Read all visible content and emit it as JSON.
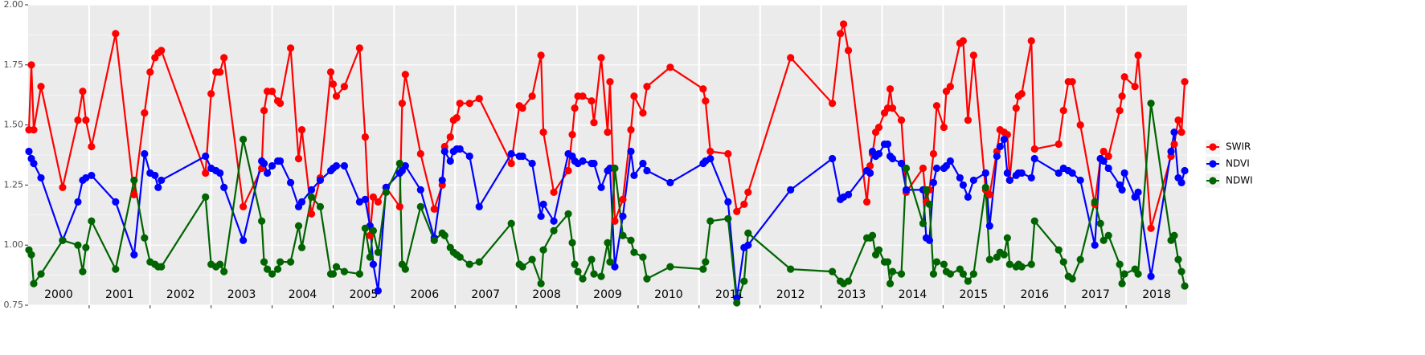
{
  "chart_data": {
    "type": "line",
    "x": [
      2000.013,
      2000.053,
      2000.092,
      2000.211,
      2000.566,
      2000.816,
      2000.895,
      2000.947,
      2001.039,
      2001.434,
      2001.737,
      2001.908,
      2002.0,
      2002.079,
      2002.132,
      2002.184,
      2002.908,
      2003.0,
      2003.079,
      2003.145,
      2003.211,
      2003.526,
      2003.829,
      2003.868,
      2003.921,
      2004.0,
      2004.092,
      2004.132,
      2004.303,
      2004.434,
      2004.487,
      2004.645,
      2004.789,
      2004.961,
      2005.0,
      2005.053,
      2005.184,
      2005.434,
      2005.526,
      2005.605,
      2005.658,
      2005.737,
      2005.868,
      2006.092,
      2006.132,
      2006.184,
      2006.434,
      2006.658,
      2006.789,
      2006.829,
      2006.921,
      2006.974,
      2007.026,
      2007.079,
      2007.237,
      2007.395,
      2007.921,
      2008.053,
      2008.105,
      2008.263,
      2008.408,
      2008.447,
      2008.618,
      2008.855,
      2008.921,
      2008.961,
      2009.013,
      2009.092,
      2009.237,
      2009.276,
      2009.395,
      2009.5,
      2009.539,
      2009.618,
      2009.75,
      2009.882,
      2009.934,
      2010.079,
      2010.145,
      2010.526,
      2011.066,
      2011.105,
      2011.184,
      2011.474,
      2011.618,
      2011.737,
      2011.803,
      2012.5,
      2013.184,
      2013.316,
      2013.368,
      2013.447,
      2013.75,
      2013.803,
      2013.842,
      2013.895,
      2013.947,
      2014.039,
      2014.092,
      2014.132,
      2014.171,
      2014.316,
      2014.395,
      2014.671,
      2014.724,
      2014.776,
      2014.842,
      2014.895,
      2015.013,
      2015.053,
      2015.118,
      2015.276,
      2015.329,
      2015.408,
      2015.5,
      2015.697,
      2015.763,
      2015.882,
      2015.934,
      2016.0,
      2016.053,
      2016.092,
      2016.197,
      2016.237,
      2016.289,
      2016.447,
      2016.5,
      2016.895,
      2016.974,
      2017.053,
      2017.118,
      2017.25,
      2017.487,
      2017.579,
      2017.632,
      2017.711,
      2017.895,
      2017.934,
      2017.974,
      2018.145,
      2018.197,
      2018.408,
      2018.737,
      2018.789,
      2018.855,
      2018.908,
      2018.961
    ],
    "series": [
      {
        "name": "SWIR",
        "color": "#ff0000",
        "values": [
          1.48,
          1.75,
          1.48,
          1.66,
          1.24,
          1.52,
          1.64,
          1.52,
          1.41,
          1.88,
          1.21,
          1.55,
          1.72,
          1.78,
          1.8,
          1.81,
          1.3,
          1.63,
          1.72,
          1.72,
          1.78,
          1.16,
          1.32,
          1.56,
          1.64,
          1.64,
          1.6,
          1.59,
          1.82,
          1.36,
          1.48,
          1.13,
          1.28,
          1.72,
          1.67,
          1.62,
          1.66,
          1.82,
          1.45,
          1.04,
          1.2,
          1.18,
          1.24,
          1.16,
          1.59,
          1.71,
          1.38,
          1.15,
          1.25,
          1.41,
          1.45,
          1.52,
          1.53,
          1.59,
          1.59,
          1.61,
          1.34,
          1.58,
          1.57,
          1.62,
          1.79,
          1.47,
          1.22,
          1.31,
          1.46,
          1.57,
          1.62,
          1.62,
          1.6,
          1.51,
          1.78,
          1.47,
          1.68,
          1.1,
          1.19,
          1.48,
          1.62,
          1.55,
          1.66,
          1.74,
          1.65,
          1.6,
          1.39,
          1.38,
          1.14,
          1.17,
          1.22,
          1.78,
          1.59,
          1.88,
          1.92,
          1.81,
          1.18,
          1.33,
          1.38,
          1.47,
          1.49,
          1.55,
          1.57,
          1.65,
          1.57,
          1.52,
          1.22,
          1.32,
          1.18,
          1.23,
          1.38,
          1.58,
          1.49,
          1.64,
          1.66,
          1.84,
          1.85,
          1.52,
          1.79,
          1.23,
          1.21,
          1.39,
          1.48,
          1.47,
          1.46,
          1.27,
          1.57,
          1.62,
          1.63,
          1.85,
          1.4,
          1.42,
          1.56,
          1.68,
          1.68,
          1.5,
          1.17,
          1.36,
          1.39,
          1.37,
          1.56,
          1.62,
          1.7,
          1.66,
          1.79,
          1.07,
          1.37,
          1.42,
          1.52,
          1.47,
          1.68
        ]
      },
      {
        "name": "NDVI",
        "color": "#0000ff",
        "values": [
          1.39,
          1.36,
          1.34,
          1.28,
          1.02,
          1.18,
          1.27,
          1.28,
          1.29,
          1.18,
          0.96,
          1.38,
          1.3,
          1.29,
          1.24,
          1.27,
          1.37,
          1.32,
          1.31,
          1.3,
          1.24,
          1.02,
          1.35,
          1.34,
          1.3,
          1.33,
          1.35,
          1.35,
          1.26,
          1.16,
          1.18,
          1.23,
          1.27,
          1.31,
          1.32,
          1.33,
          1.33,
          1.18,
          1.19,
          1.08,
          0.92,
          0.81,
          1.24,
          1.3,
          1.31,
          1.33,
          1.23,
          1.03,
          1.27,
          1.39,
          1.35,
          1.39,
          1.4,
          1.4,
          1.37,
          1.16,
          1.38,
          1.37,
          1.37,
          1.34,
          1.12,
          1.17,
          1.1,
          1.38,
          1.37,
          1.35,
          1.34,
          1.35,
          1.34,
          1.34,
          1.24,
          1.31,
          1.32,
          0.91,
          1.12,
          1.39,
          1.29,
          1.34,
          1.31,
          1.26,
          1.34,
          1.35,
          1.36,
          1.18,
          0.78,
          0.99,
          1.0,
          1.23,
          1.36,
          1.19,
          1.2,
          1.21,
          1.31,
          1.3,
          1.39,
          1.37,
          1.38,
          1.42,
          1.42,
          1.37,
          1.36,
          1.34,
          1.23,
          1.23,
          1.03,
          1.02,
          1.26,
          1.32,
          1.32,
          1.33,
          1.35,
          1.28,
          1.25,
          1.2,
          1.27,
          1.3,
          1.08,
          1.37,
          1.41,
          1.44,
          1.3,
          1.27,
          1.29,
          1.3,
          1.3,
          1.28,
          1.36,
          1.3,
          1.32,
          1.31,
          1.3,
          1.27,
          1.0,
          1.36,
          1.35,
          1.32,
          1.25,
          1.23,
          1.3,
          1.2,
          1.22,
          0.87,
          1.39,
          1.47,
          1.28,
          1.26,
          1.31
        ]
      },
      {
        "name": "NDWI",
        "color": "#006400",
        "values": [
          0.98,
          0.96,
          0.84,
          0.88,
          1.02,
          1.0,
          0.89,
          0.99,
          1.1,
          0.9,
          1.27,
          1.03,
          0.93,
          0.92,
          0.91,
          0.91,
          1.2,
          0.92,
          0.91,
          0.92,
          0.89,
          1.44,
          1.1,
          0.93,
          0.9,
          0.88,
          0.9,
          0.93,
          0.93,
          1.08,
          0.99,
          1.2,
          1.16,
          0.88,
          0.88,
          0.91,
          0.89,
          0.88,
          1.07,
          0.95,
          1.06,
          0.97,
          1.22,
          1.34,
          0.92,
          0.9,
          1.16,
          1.02,
          1.05,
          1.04,
          0.99,
          0.97,
          0.96,
          0.95,
          0.92,
          0.93,
          1.09,
          0.92,
          0.91,
          0.94,
          0.84,
          0.98,
          1.06,
          1.13,
          1.01,
          0.92,
          0.89,
          0.86,
          0.94,
          0.88,
          0.87,
          1.01,
          0.93,
          1.32,
          1.04,
          1.02,
          0.97,
          0.95,
          0.86,
          0.91,
          0.9,
          0.93,
          1.1,
          1.11,
          0.76,
          0.85,
          1.05,
          0.9,
          0.89,
          0.85,
          0.84,
          0.85,
          1.03,
          1.03,
          1.04,
          0.96,
          0.98,
          0.93,
          0.93,
          0.84,
          0.89,
          0.88,
          1.32,
          1.09,
          1.23,
          1.17,
          0.88,
          0.93,
          0.92,
          0.89,
          0.88,
          0.9,
          0.88,
          0.85,
          0.88,
          1.24,
          0.94,
          0.95,
          0.97,
          0.96,
          1.03,
          0.92,
          0.91,
          0.92,
          0.91,
          0.92,
          1.1,
          0.98,
          0.93,
          0.87,
          0.86,
          0.94,
          1.18,
          1.09,
          1.02,
          1.04,
          0.92,
          0.84,
          0.88,
          0.9,
          0.88,
          1.59,
          1.02,
          1.04,
          0.94,
          0.89,
          0.83
        ]
      }
    ],
    "xlim": [
      2000,
      2019
    ],
    "xticks": [
      {
        "value": 2000.5,
        "label": "2000"
      },
      {
        "value": 2001.5,
        "label": "2001"
      },
      {
        "value": 2002.5,
        "label": "2002"
      },
      {
        "value": 2003.5,
        "label": "2003"
      },
      {
        "value": 2004.5,
        "label": "2004"
      },
      {
        "value": 2005.5,
        "label": "2005"
      },
      {
        "value": 2006.5,
        "label": "2006"
      },
      {
        "value": 2007.5,
        "label": "2007"
      },
      {
        "value": 2008.5,
        "label": "2008"
      },
      {
        "value": 2009.5,
        "label": "2009"
      },
      {
        "value": 2010.5,
        "label": "2010"
      },
      {
        "value": 2011.5,
        "label": "2011"
      },
      {
        "value": 2012.5,
        "label": "2012"
      },
      {
        "value": 2013.5,
        "label": "2013"
      },
      {
        "value": 2014.5,
        "label": "2014"
      },
      {
        "value": 2015.5,
        "label": "2015"
      },
      {
        "value": 2016.5,
        "label": "2016"
      },
      {
        "value": 2017.5,
        "label": "2017"
      },
      {
        "value": 2018.5,
        "label": "2018"
      }
    ],
    "xgrid": [
      2001,
      2002,
      2003,
      2004,
      2005,
      2006,
      2007,
      2008,
      2009,
      2010,
      2011,
      2012,
      2013,
      2014,
      2015,
      2016,
      2017,
      2018
    ],
    "ylim": [
      0.75,
      2.0
    ],
    "yticks": [
      0.75,
      {
        "value": 1.0,
        "label": "1.00"
      },
      1.25,
      {
        "value": 1.5,
        "label": "1.50"
      },
      1.75,
      {
        "value": 2.0,
        "label": "2.00"
      }
    ],
    "grid": true,
    "legend": "right"
  }
}
